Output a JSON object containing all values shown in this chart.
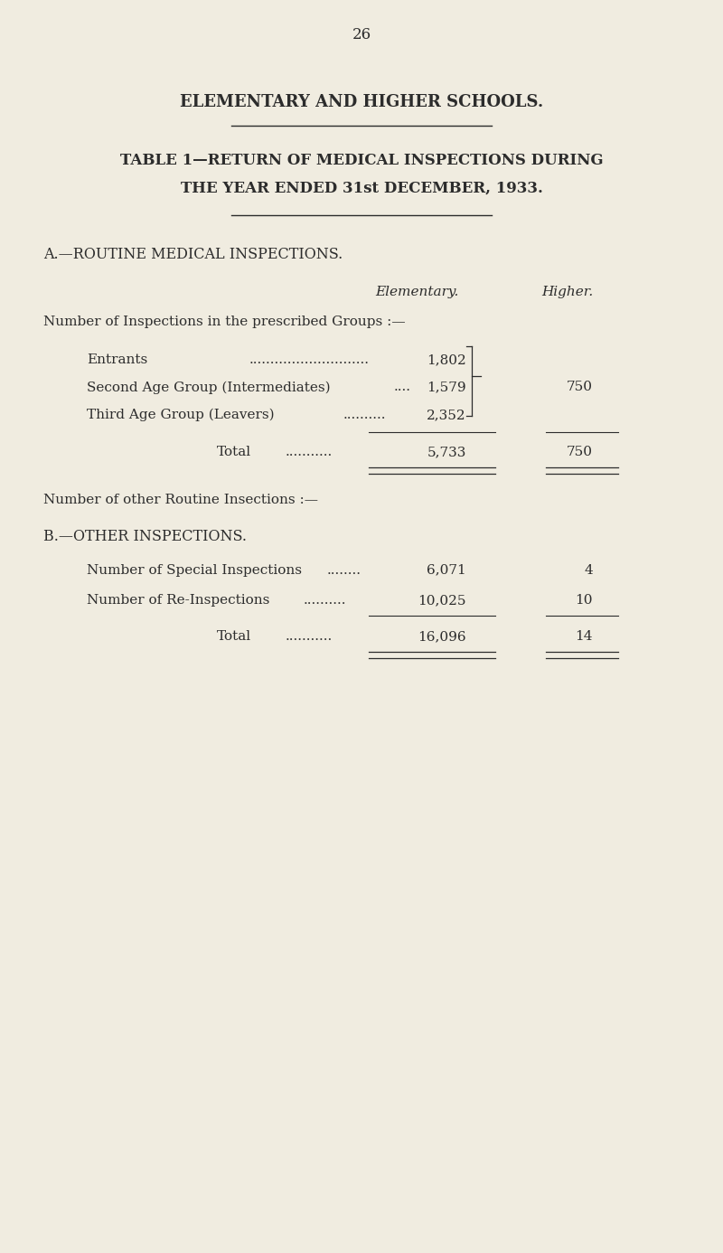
{
  "background_color": "#f0ece0",
  "text_color": "#2c2c2c",
  "page_number": "26",
  "main_title": "ELEMENTARY AND HIGHER SCHOOLS.",
  "table_title_line1": "TABLE 1—RETURN OF MEDICAL INSPECTIONS DURING",
  "table_title_line2": "THE YEAR ENDED 31st DECEMBER, 1933.",
  "section_a_title": "A.—ROUTINE MEDICAL INSPECTIONS.",
  "col_header_elementary": "Elementary.",
  "col_header_higher": "Higher.",
  "groups_intro": "Number of Inspections in the prescribed Groups :—",
  "row1_label": "Entrants",
  "row1_dots": "............................",
  "row1_elementary": "1,802",
  "row2_label": "Second Age Group (Intermediates)",
  "row2_dots": "....",
  "row2_elementary": "1,579",
  "row2_higher": "750",
  "row3_label": "Third Age Group (Leavers)",
  "row3_dots": "..........",
  "row3_elementary": "2,352",
  "total_label": "Total",
  "total_dots": "...........",
  "total_elementary": "5,733",
  "total_higher": "750",
  "other_routine_label": "Number of other Routine Insections :—",
  "section_b_title": "B.—OTHER INSPECTIONS.",
  "special_label": "Number of Special Inspections",
  "special_dots": "........",
  "special_elementary": "6,071",
  "special_higher": "4",
  "reinspect_label": "Number of Re-Inspections",
  "reinspect_dots": "..........",
  "reinspect_elementary": "10,025",
  "reinspect_higher": "10",
  "btotal_label": "Total",
  "btotal_dots": "...........",
  "btotal_elementary": "16,096",
  "btotal_higher": "14"
}
